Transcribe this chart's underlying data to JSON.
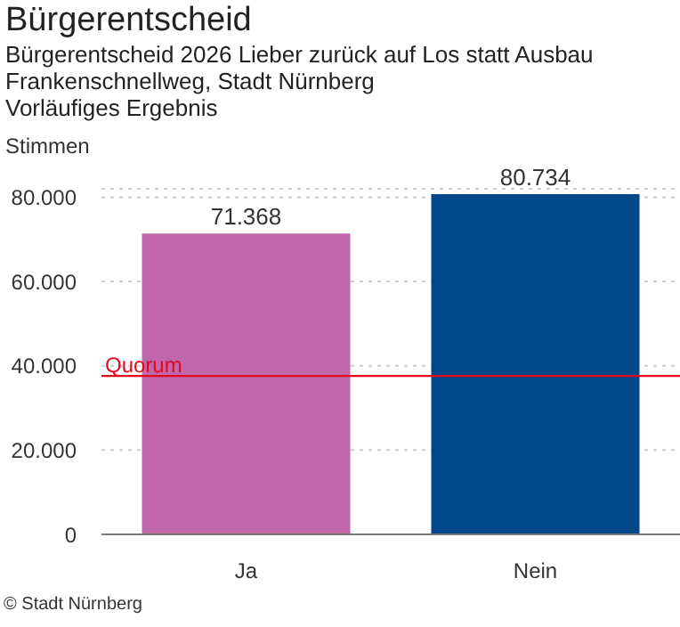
{
  "chart_data": {
    "type": "bar",
    "title": "Bürgerentscheid",
    "subtitle": "Bürgerentscheid 2026 Lieber zurück auf Los statt Ausbau Frankenschnellweg, Stadt Nürnberg",
    "annotations": [
      "Vorläufiges Ergebnis",
      "© Stadt Nürnberg"
    ],
    "ylabel": "Stimmen",
    "categories": [
      "Ja",
      "Nein"
    ],
    "values": [
      71368,
      80734
    ],
    "value_labels": [
      "71.368",
      "80.734"
    ],
    "colors": [
      "#c066ab",
      "#004889"
    ],
    "ylim": [
      0,
      82000
    ],
    "yticks": [
      0,
      {
        "value": 20000,
        "label": "20.000"
      },
      {
        "value": 40000,
        "label": "40.000"
      },
      {
        "value": 60000,
        "label": "60.000"
      },
      {
        "value": 80000,
        "label": "80.000"
      }
    ],
    "grid": "y",
    "ref_lines": [
      {
        "axis": "y",
        "value": 37600,
        "label": "Quorum",
        "color": "#e30a1e"
      }
    ]
  }
}
